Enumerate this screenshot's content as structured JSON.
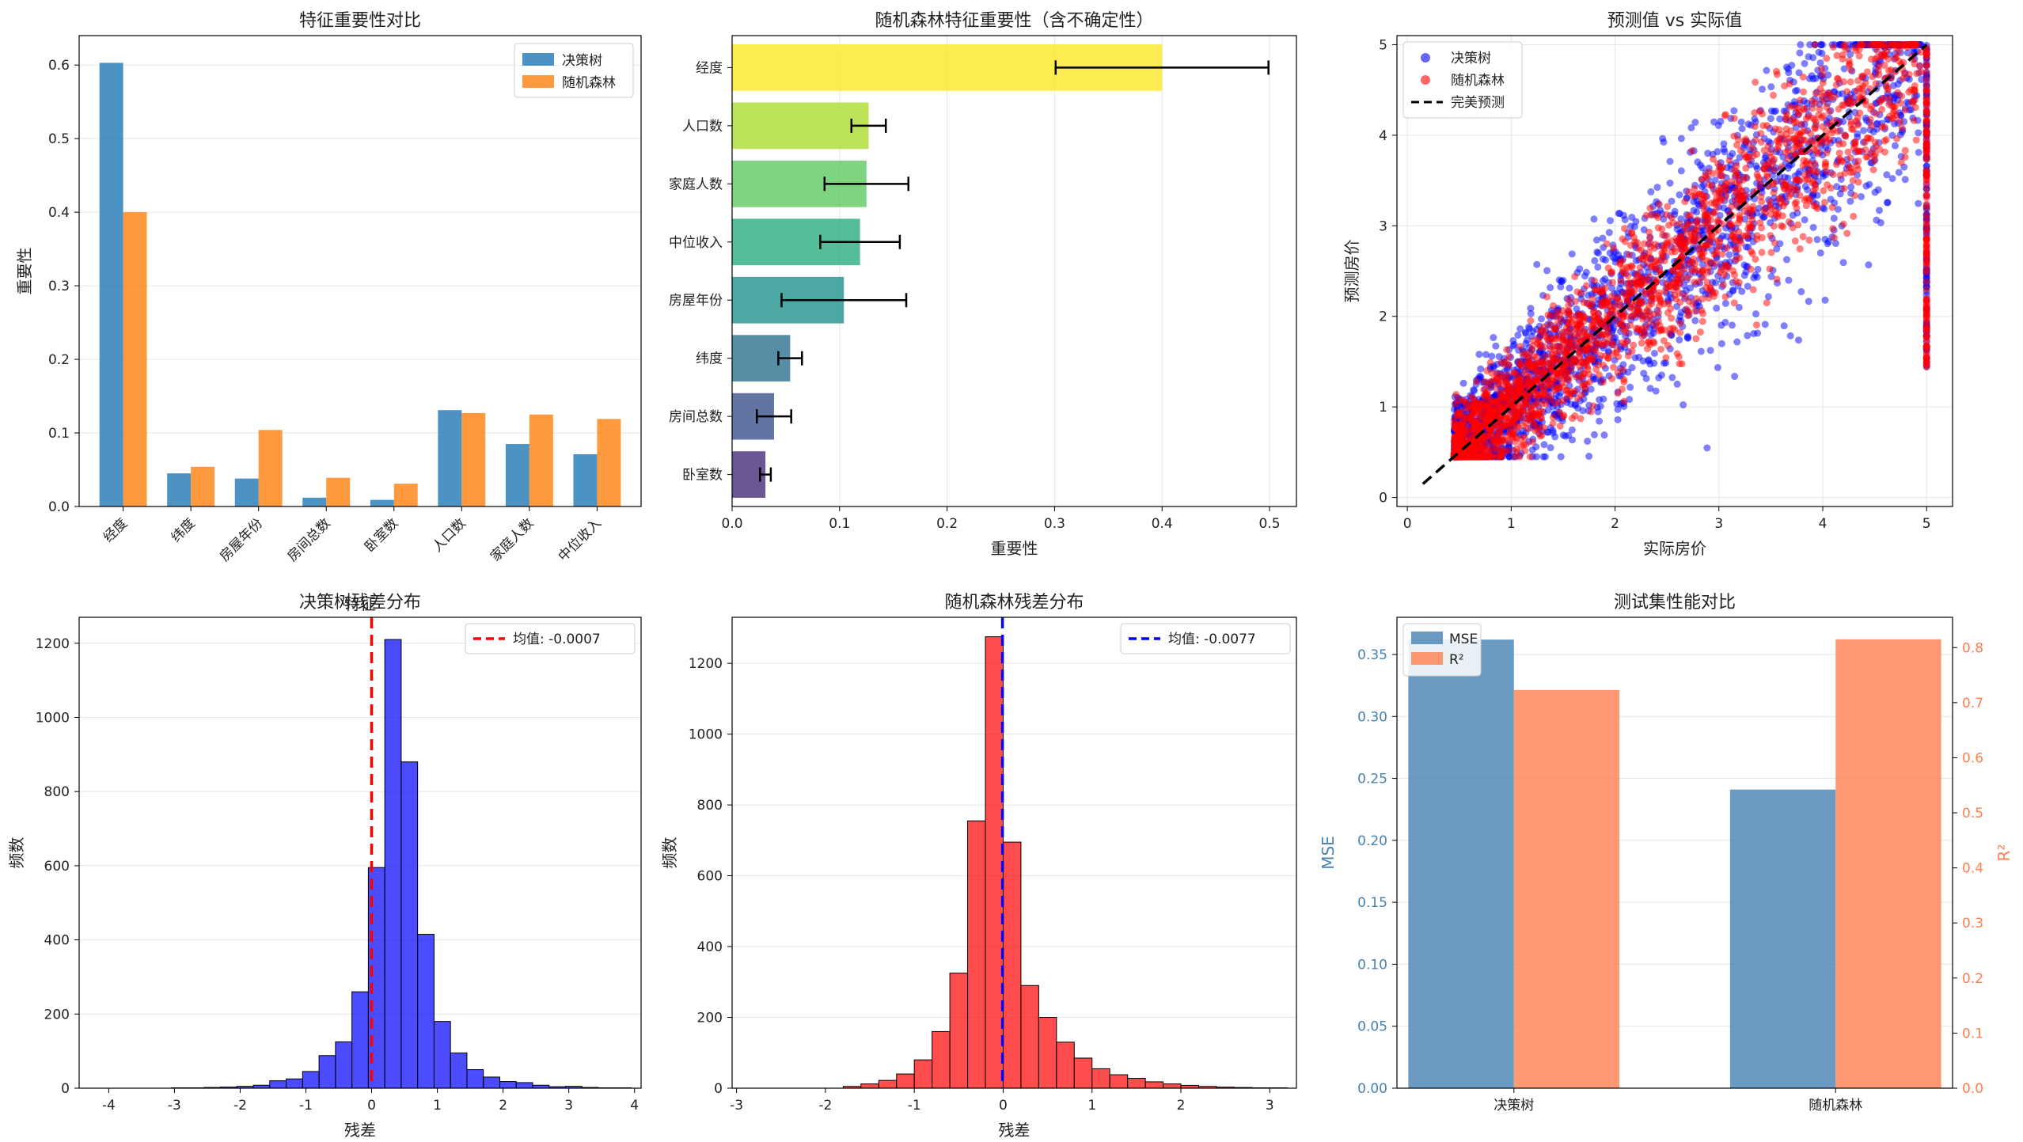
{
  "figure": {
    "background": "#ffffff"
  },
  "chart_data": [
    {
      "id": "p1",
      "type": "bar",
      "title": "特征重要性对比",
      "xlabel": "特征",
      "ylabel": "重要性",
      "categories": [
        "经度",
        "纬度",
        "房屋年份",
        "房间总数",
        "卧室数",
        "人口数",
        "家庭人数",
        "中位收入"
      ],
      "series": [
        {
          "name": "决策树",
          "color": "#1f77b4",
          "values": [
            0.603,
            0.045,
            0.038,
            0.012,
            0.009,
            0.131,
            0.085,
            0.071
          ]
        },
        {
          "name": "随机森林",
          "color": "#ff7f0e",
          "values": [
            0.4,
            0.054,
            0.104,
            0.039,
            0.031,
            0.127,
            0.125,
            0.119
          ]
        }
      ],
      "ylim": [
        0,
        0.64
      ],
      "yticks": [
        0.0,
        0.1,
        0.2,
        0.3,
        0.4,
        0.5,
        0.6
      ],
      "legend": "upper right"
    },
    {
      "id": "p2",
      "type": "barh",
      "title": "随机森林特征重要性（含不确定性）",
      "xlabel": "重要性",
      "categories": [
        "经度",
        "人口数",
        "家庭人数",
        "中位收入",
        "房屋年份",
        "纬度",
        "房间总数",
        "卧室数"
      ],
      "values": [
        0.4,
        0.127,
        0.125,
        0.119,
        0.104,
        0.054,
        0.039,
        0.031
      ],
      "errors": [
        0.099,
        0.016,
        0.039,
        0.037,
        0.058,
        0.011,
        0.016,
        0.005
      ],
      "colors": [
        "#fde725",
        "#addc30",
        "#5ec962",
        "#28ae80",
        "#21918c",
        "#2c728e",
        "#3b528b",
        "#472d7b"
      ],
      "xlim": [
        0,
        0.525
      ],
      "xticks": [
        0.0,
        0.1,
        0.2,
        0.3,
        0.4,
        0.5
      ]
    },
    {
      "id": "p3",
      "type": "scatter",
      "title": "预测值 vs 实际值",
      "xlabel": "实际房价",
      "ylabel": "预测房价",
      "xlim": [
        -0.1,
        5.25
      ],
      "ylim": [
        -0.1,
        5.1
      ],
      "xticks": [
        0,
        1,
        2,
        3,
        4,
        5
      ],
      "yticks": [
        0,
        1,
        2,
        3,
        4,
        5
      ],
      "series": [
        {
          "name": "决策树",
          "color": "#0000ff"
        },
        {
          "name": "随机森林",
          "color": "#ff0000"
        }
      ],
      "reference_line": {
        "name": "完美预测",
        "from": [
          0.15,
          0.15
        ],
        "to": [
          5.0,
          5.0
        ]
      },
      "legend": "upper left"
    },
    {
      "id": "p4",
      "type": "histogram",
      "title": "决策树残差分布",
      "xlabel": "残差",
      "ylabel": "频数",
      "color": "#0000ff",
      "bin_start": -4.3,
      "bin_width": 0.25,
      "counts": [
        0,
        0,
        0,
        0,
        0,
        1,
        1,
        2,
        3,
        5,
        8,
        20,
        25,
        45,
        88,
        125,
        260,
        595,
        1210,
        880,
        415,
        180,
        95,
        50,
        30,
        18,
        15,
        8,
        4,
        5,
        2,
        1,
        1,
        0
      ],
      "mean_label": "均值: -0.0007",
      "mean": -0.0007,
      "xlim": [
        -4.45,
        4.1
      ],
      "ylim": [
        0,
        1270
      ],
      "xticks": [
        -4,
        -3,
        -2,
        -1,
        0,
        1,
        2,
        3,
        4
      ],
      "yticks": [
        0,
        200,
        400,
        600,
        800,
        1000,
        1200
      ]
    },
    {
      "id": "p5",
      "type": "histogram",
      "title": "随机森林残差分布",
      "xlabel": "残差",
      "ylabel": "频数",
      "color": "#ff0000",
      "bin_start": -2.8,
      "bin_width": 0.2,
      "counts": [
        0,
        0,
        0,
        0,
        0,
        5,
        12,
        22,
        40,
        80,
        160,
        325,
        755,
        1275,
        695,
        290,
        200,
        130,
        85,
        55,
        38,
        28,
        18,
        12,
        8,
        5,
        3,
        2,
        1,
        1,
        0,
        0
      ],
      "mean_label": "均值: -0.0077",
      "mean": -0.0077,
      "xlim": [
        -3.05,
        3.3
      ],
      "ylim": [
        0,
        1330
      ],
      "xticks": [
        -3,
        -2,
        -1,
        0,
        1,
        2,
        3
      ],
      "yticks": [
        0,
        200,
        400,
        600,
        800,
        1000,
        1200
      ]
    },
    {
      "id": "p6",
      "type": "bar_dual_axis",
      "title": "测试集性能对比",
      "categories": [
        "决策树",
        "随机森林"
      ],
      "series": [
        {
          "name": "MSE",
          "axis": "left",
          "color": "#4682b4",
          "values": [
            0.362,
            0.241
          ]
        },
        {
          "name": "R²",
          "axis": "right",
          "color": "#ff7f50",
          "values": [
            0.723,
            0.815
          ]
        }
      ],
      "ylabel_left": "MSE",
      "ylabel_right": "R²",
      "ylim_left": [
        0,
        0.38
      ],
      "ylim_right": [
        0,
        0.855
      ],
      "yticks_left": [
        0.0,
        0.05,
        0.1,
        0.15,
        0.2,
        0.25,
        0.3,
        0.35
      ],
      "yticks_right": [
        0.0,
        0.1,
        0.2,
        0.3,
        0.4,
        0.5,
        0.6,
        0.7,
        0.8
      ],
      "legend": "upper left"
    }
  ]
}
